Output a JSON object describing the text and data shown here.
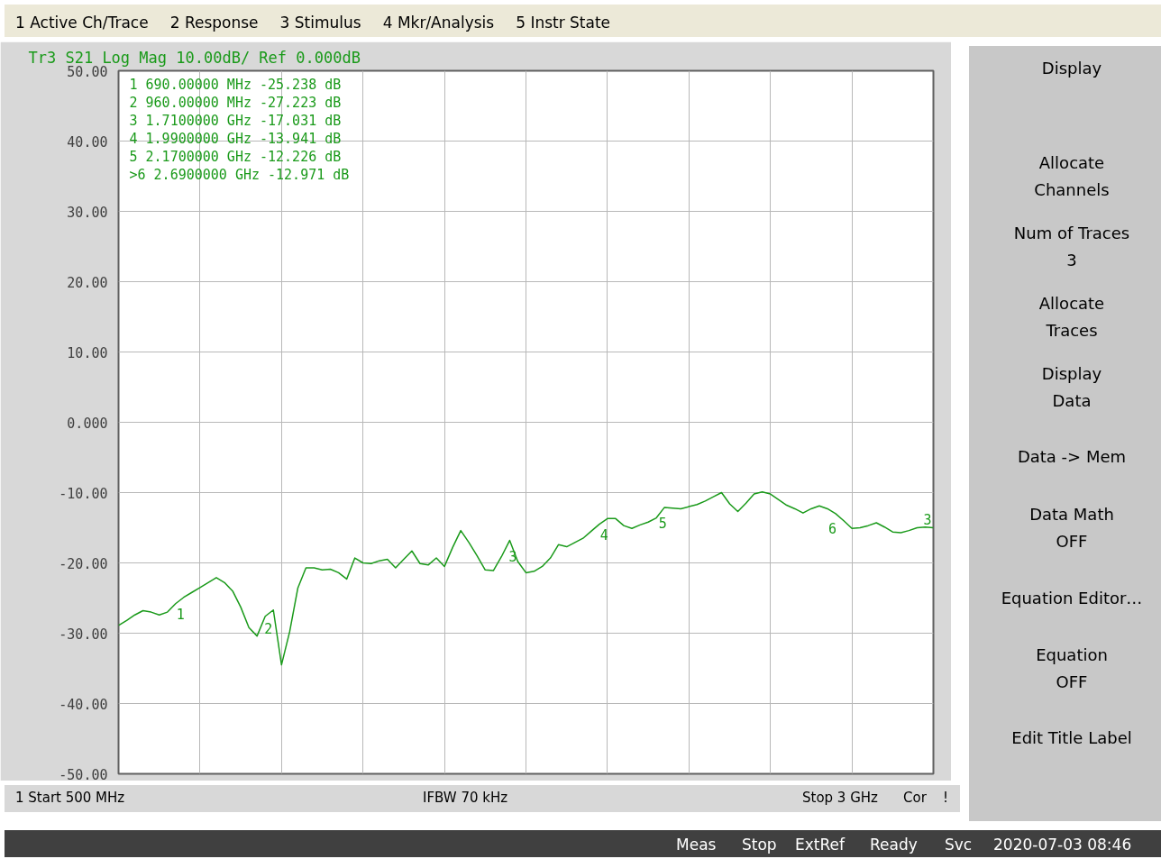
{
  "chart_data": {
    "type": "line",
    "title": "Tr3 S21 Log Mag 10.00dB/ Ref 0.000dB",
    "categories": [
      null,
      null,
      null,
      null,
      null,
      null,
      null,
      null,
      null,
      null,
      null,
      null,
      null,
      null,
      null,
      null,
      null,
      null,
      null,
      null,
      null,
      null,
      null,
      null,
      null,
      null,
      null,
      null,
      null,
      null,
      null,
      null,
      null,
      null,
      null,
      null,
      null,
      null,
      null,
      null,
      null,
      null,
      null,
      null,
      null,
      null,
      null,
      null,
      null,
      null,
      null,
      null,
      null,
      null,
      null,
      null,
      null,
      null,
      null,
      null,
      null,
      null,
      null,
      null,
      null,
      null,
      null,
      null,
      null,
      null,
      null,
      null,
      null,
      null,
      null,
      null,
      null,
      null,
      null,
      null,
      null,
      null,
      null,
      null,
      null,
      null,
      null,
      null,
      null,
      null,
      null,
      null,
      null,
      null,
      null,
      null,
      null,
      null,
      null,
      null,
      null
    ],
    "ylim": [
      -50,
      50
    ],
    "yticks": [
      {
        "value": -50,
        "label": "-50.00"
      },
      {
        "value": -40,
        "label": "-40.00"
      },
      {
        "value": -30,
        "label": "-30.00"
      },
      {
        "value": -20,
        "label": "-20.00"
      },
      {
        "value": -10,
        "label": "-10.00"
      },
      {
        "value": 0,
        "label": "0.000"
      },
      {
        "value": 10,
        "label": "10.00"
      },
      {
        "value": 20,
        "label": "20.00"
      },
      {
        "value": 30,
        "label": "30.00"
      },
      {
        "value": 40,
        "label": "40.00"
      },
      {
        "value": 50,
        "label": "50.00"
      }
    ],
    "grid": true,
    "tick_labels": "y",
    "line_style": "solid",
    "series": [
      {
        "name": "3",
        "color": "#1a9a1a",
        "marker": "none",
        "values": [
          -28.9,
          -28.2,
          -27.4,
          -26.8,
          -27.0,
          -27.4,
          -27.0,
          -25.8,
          -24.9,
          -24.2,
          -23.5,
          -22.8,
          -22.1,
          -22.8,
          -24.0,
          -26.3,
          -29.2,
          -30.4,
          -27.6,
          -26.7,
          -34.5,
          -29.8,
          -23.6,
          -20.7,
          -20.7,
          -21.0,
          -20.9,
          -21.4,
          -22.3,
          -19.3,
          -20.0,
          -20.1,
          -19.7,
          -19.5,
          -20.7,
          -19.5,
          -18.3,
          -20.1,
          -20.3,
          -19.3,
          -20.5,
          -17.8,
          -15.4,
          -17.1,
          -19.0,
          -21.0,
          -21.1,
          -19.1,
          -16.8,
          -19.8,
          -21.4,
          -21.2,
          -20.5,
          -19.3,
          -17.4,
          -17.7,
          -17.1,
          -16.5,
          -15.5,
          -14.5,
          -13.7,
          -13.7,
          -14.7,
          -15.1,
          -14.6,
          -14.2,
          -13.6,
          -12.1,
          -12.2,
          -12.3,
          -12.0,
          -11.7,
          -11.2,
          -10.6,
          -10.0,
          -11.6,
          -12.7,
          -11.5,
          -10.2,
          -9.9,
          -10.2,
          -11.0,
          -11.8,
          -12.3,
          -12.9,
          -12.3,
          -11.9,
          -12.3,
          -13.0,
          -14.0,
          -15.1,
          -15.0,
          -14.7,
          -14.3,
          -14.9,
          -15.6,
          -15.7,
          -15.4,
          -15.0,
          -14.9,
          -15.0
        ]
      }
    ],
    "annotations": [
      "1   690.00000 MHz -25.238 dB",
      "2   960.00000 MHz -27.223 dB",
      "3   1.7100000 GHz -17.031 dB",
      "4   1.9900000 GHz -13.941 dB",
      "5   2.1700000 GHz -12.226 dB",
      ">6   2.6900000 GHz -12.971 dB",
      "1 Active Ch/Trace",
      "2 Response",
      "3 Stimulus",
      "4 Mkr/Analysis",
      "5 Instr State",
      "1 Start 500 MHz",
      "IFBW 70 kHz",
      "Stop 3 GHz",
      "Cor",
      "!",
      "Display",
      "Allocate",
      "Channels",
      "Num of Traces",
      "3",
      "Allocate",
      "Traces",
      "Display",
      "Data",
      "Data -> Mem",
      "Data Math",
      "OFF",
      "Equation Editor…",
      "Equation",
      "OFF",
      "Edit Title Label",
      "Meas",
      "Stop",
      "ExtRef",
      "Ready",
      "Svc",
      "2020-07-03 08:46",
      {
        "text": "1",
        "y": -25.238
      },
      {
        "text": "2",
        "y": -27.223
      },
      {
        "text": "3",
        "y": -17.031
      },
      {
        "text": "4",
        "y": -13.941
      },
      {
        "text": "5",
        "y": -12.226
      },
      {
        "text": "6",
        "y": -12.971
      }
    ]
  }
}
